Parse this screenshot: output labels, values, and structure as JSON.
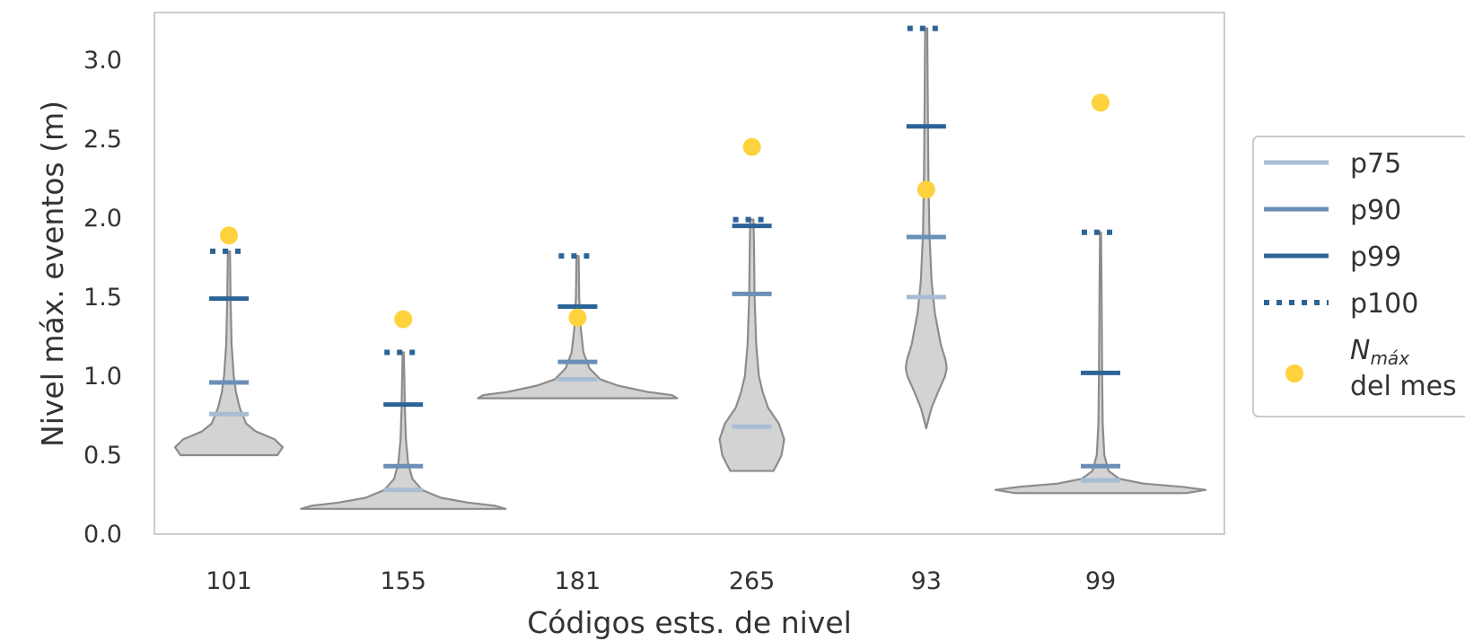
{
  "chart_data": {
    "type": "violin",
    "categories": [
      "101",
      "155",
      "181",
      "265",
      "93",
      "99"
    ],
    "xlabel": "Códigos ests. de nivel",
    "ylabel": "Nivel máx. eventos  (m)",
    "ylim": [
      0,
      3.3
    ],
    "yticks": [
      "0.0",
      "0.5",
      "1.0",
      "1.5",
      "2.0",
      "2.5",
      "3.0"
    ],
    "grid": false,
    "legend_position": "right",
    "colors": {
      "violin_fill": "#d3d3d3",
      "violin_edge": "#8c8c8c",
      "p75": "#a7bdd3",
      "p90": "#6a8fb6",
      "p99": "#2d6496",
      "p100": "#2d6496",
      "nmax": "#fdd23c"
    },
    "violins": [
      {
        "name": "101",
        "min": 0.5,
        "p75": 0.76,
        "p90": 0.96,
        "p99": 1.49,
        "p100": 1.79,
        "nmax": 1.89,
        "shape": [
          [
            0.5,
            0.9
          ],
          [
            0.55,
            1.0
          ],
          [
            0.6,
            0.85
          ],
          [
            0.65,
            0.5
          ],
          [
            0.7,
            0.32
          ],
          [
            0.8,
            0.2
          ],
          [
            0.9,
            0.13
          ],
          [
            1.0,
            0.09
          ],
          [
            1.2,
            0.05
          ],
          [
            1.5,
            0.03
          ],
          [
            1.79,
            0.02
          ]
        ]
      },
      {
        "name": "155",
        "min": 0.16,
        "p75": 0.28,
        "p90": 0.43,
        "p99": 0.82,
        "p100": 1.15,
        "nmax": 1.36,
        "shape": [
          [
            0.16,
            1.9
          ],
          [
            0.18,
            1.7
          ],
          [
            0.2,
            1.2
          ],
          [
            0.23,
            0.7
          ],
          [
            0.28,
            0.35
          ],
          [
            0.35,
            0.17
          ],
          [
            0.45,
            0.09
          ],
          [
            0.6,
            0.05
          ],
          [
            0.8,
            0.03
          ],
          [
            1.0,
            0.02
          ],
          [
            1.15,
            0.01
          ]
        ]
      },
      {
        "name": "181",
        "min": 0.86,
        "p75": 0.98,
        "p90": 1.09,
        "p99": 1.44,
        "p100": 1.76,
        "nmax": 1.37,
        "shape": [
          [
            0.86,
            1.85
          ],
          [
            0.88,
            1.75
          ],
          [
            0.9,
            1.3
          ],
          [
            0.94,
            0.75
          ],
          [
            0.98,
            0.42
          ],
          [
            1.05,
            0.22
          ],
          [
            1.15,
            0.11
          ],
          [
            1.3,
            0.06
          ],
          [
            1.5,
            0.03
          ],
          [
            1.76,
            0.02
          ]
        ]
      },
      {
        "name": "265",
        "min": 0.4,
        "p75": 0.68,
        "p90": 1.52,
        "p99": 1.95,
        "p100": 1.99,
        "nmax": 2.45,
        "shape": [
          [
            0.4,
            0.4
          ],
          [
            0.45,
            0.48
          ],
          [
            0.5,
            0.55
          ],
          [
            0.6,
            0.6
          ],
          [
            0.7,
            0.5
          ],
          [
            0.8,
            0.3
          ],
          [
            0.9,
            0.2
          ],
          [
            1.0,
            0.13
          ],
          [
            1.2,
            0.08
          ],
          [
            1.5,
            0.05
          ],
          [
            1.8,
            0.04
          ],
          [
            1.99,
            0.03
          ]
        ]
      },
      {
        "name": "93",
        "min": 0.67,
        "p75": 1.5,
        "p90": 1.88,
        "p99": 2.58,
        "p100": 3.2,
        "nmax": 2.18,
        "shape": [
          [
            0.67,
            0.0
          ],
          [
            0.8,
            0.1
          ],
          [
            0.9,
            0.22
          ],
          [
            1.0,
            0.35
          ],
          [
            1.05,
            0.38
          ],
          [
            1.1,
            0.36
          ],
          [
            1.2,
            0.27
          ],
          [
            1.4,
            0.16
          ],
          [
            1.6,
            0.1
          ],
          [
            1.9,
            0.06
          ],
          [
            2.3,
            0.04
          ],
          [
            2.7,
            0.03
          ],
          [
            3.2,
            0.02
          ]
        ]
      },
      {
        "name": "99",
        "min": 0.26,
        "p75": 0.34,
        "p90": 0.43,
        "p99": 1.02,
        "p100": 1.91,
        "nmax": 2.73,
        "shape": [
          [
            0.26,
            1.6
          ],
          [
            0.28,
            1.95
          ],
          [
            0.3,
            1.5
          ],
          [
            0.32,
            0.8
          ],
          [
            0.35,
            0.35
          ],
          [
            0.4,
            0.15
          ],
          [
            0.5,
            0.07
          ],
          [
            0.7,
            0.04
          ],
          [
            1.0,
            0.03
          ],
          [
            1.5,
            0.02
          ],
          [
            1.91,
            0.01
          ]
        ]
      }
    ]
  },
  "legend": {
    "items": [
      {
        "key": "p75",
        "label": "p75",
        "style": "line"
      },
      {
        "key": "p90",
        "label": "p90",
        "style": "line"
      },
      {
        "key": "p99",
        "label": "p99",
        "style": "line"
      },
      {
        "key": "p100",
        "label": "p100",
        "style": "dotted"
      },
      {
        "key": "nmax",
        "label_main": "N",
        "label_sub": "máx",
        "label_line2": "del mes",
        "style": "dot"
      }
    ]
  }
}
